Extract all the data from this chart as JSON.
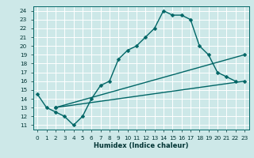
{
  "xlabel": "Humidex (Indice chaleur)",
  "bg_color": "#cde8e8",
  "grid_color": "#ffffff",
  "line_color": "#006666",
  "xlim": [
    -0.5,
    23.5
  ],
  "ylim": [
    10.5,
    24.5
  ],
  "xticks": [
    0,
    1,
    2,
    3,
    4,
    5,
    6,
    7,
    8,
    9,
    10,
    11,
    12,
    13,
    14,
    15,
    16,
    17,
    18,
    19,
    20,
    21,
    22,
    23
  ],
  "yticks": [
    11,
    12,
    13,
    14,
    15,
    16,
    17,
    18,
    19,
    20,
    21,
    22,
    23,
    24
  ],
  "line1_x": [
    0,
    1,
    2,
    3,
    4,
    5,
    6,
    7,
    8,
    9,
    10,
    11,
    12,
    13,
    14,
    15,
    16,
    17,
    18,
    19,
    20,
    21,
    22
  ],
  "line1_y": [
    14.5,
    13.0,
    12.5,
    12.0,
    11.0,
    12.0,
    14.0,
    15.5,
    16.0,
    18.5,
    19.5,
    20.0,
    21.0,
    22.0,
    24.0,
    23.5,
    23.5,
    23.0,
    20.0,
    19.0,
    17.0,
    16.5,
    16.0
  ],
  "line2_x": [
    2,
    23
  ],
  "line2_y": [
    13.0,
    19.0
  ],
  "line3_x": [
    2,
    23
  ],
  "line3_y": [
    13.0,
    16.0
  ],
  "markersize": 2.5,
  "linewidth": 1.0,
  "tick_fontsize": 5.2,
  "xlabel_fontsize": 6.0
}
